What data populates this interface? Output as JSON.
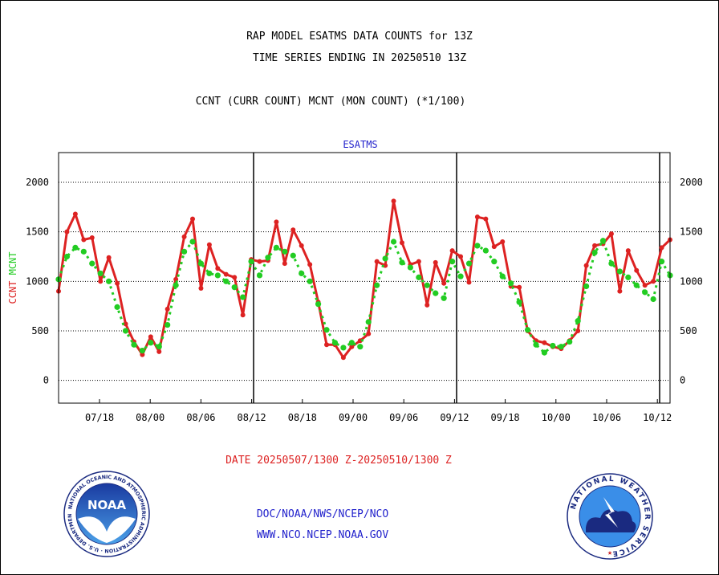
{
  "header": {
    "title_line1": "RAP MODEL ESATMS DATA COUNTS for 13Z",
    "title_line2": "TIME SERIES ENDING IN 20250510 13Z",
    "subtitle": "CCNT (CURR COUNT) MCNT (MON COUNT) (*1/100)"
  },
  "chart_data": {
    "type": "line",
    "title": "ESATMS",
    "ylabel_left_ccnt": "CCNT",
    "ylabel_left_mcnt": "MCNT",
    "ylim": [
      -230,
      2300
    ],
    "yticks": [
      0,
      500,
      1000,
      1500,
      2000
    ],
    "xlabels": [
      "07/18",
      "08/00",
      "08/06",
      "08/12",
      "08/18",
      "09/00",
      "09/06",
      "09/12",
      "09/18",
      "10/00",
      "10/06",
      "10/12"
    ],
    "xlabel": "DATE 20250507/1300 Z-20250510/1300 Z",
    "grid": true,
    "colors": {
      "ccnt": "#dd2222",
      "mcnt": "#22cc22",
      "title": "#2222cc"
    },
    "series": [
      {
        "name": "CCNT",
        "values": [
          900,
          1500,
          1680,
          1420,
          1440,
          1000,
          1240,
          980,
          570,
          390,
          260,
          440,
          290,
          720,
          1020,
          1450,
          1630,
          930,
          1370,
          1130,
          1070,
          1040,
          660,
          1220,
          1200,
          1210,
          1600,
          1180,
          1520,
          1360,
          1170,
          790,
          360,
          360,
          230,
          340,
          400,
          470,
          1200,
          1160,
          1810,
          1390,
          1170,
          1200,
          760,
          1190,
          980,
          1310,
          1250,
          990,
          1650,
          1630,
          1350,
          1400,
          950,
          940,
          500,
          400,
          380,
          340,
          320,
          400,
          500,
          1160,
          1360,
          1380,
          1480,
          900,
          1310,
          1110,
          960,
          1000,
          1340,
          1420
        ]
      },
      {
        "name": "MCNT",
        "values": [
          1020,
          1250,
          1340,
          1300,
          1180,
          1080,
          1000,
          740,
          500,
          360,
          300,
          380,
          340,
          560,
          960,
          1300,
          1400,
          1180,
          1080,
          1060,
          1000,
          940,
          840,
          1200,
          1060,
          1240,
          1340,
          1300,
          1260,
          1080,
          1000,
          770,
          510,
          380,
          330,
          380,
          340,
          590,
          960,
          1230,
          1400,
          1190,
          1140,
          1040,
          960,
          880,
          830,
          1200,
          1050,
          1180,
          1360,
          1310,
          1200,
          1050,
          980,
          790,
          510,
          360,
          280,
          350,
          340,
          390,
          600,
          950,
          1290,
          1410,
          1180,
          1100,
          1040,
          960,
          890,
          820,
          1200,
          1060
        ]
      }
    ]
  },
  "footer": {
    "org": "DOC/NOAA/NWS/NCEP/NCO",
    "site": "WWW.NCO.NCEP.NOAA.GOV"
  },
  "logos": {
    "noaa": {
      "text": "NOAA",
      "ring_text": "NATIONAL OCEANIC AND ATMOSPHERIC ADMINISTRATION · U.S. DEPARTMENT OF COMMERCE"
    },
    "nws": {
      "ring_text": "NATIONAL WEATHER SERVICE"
    }
  }
}
